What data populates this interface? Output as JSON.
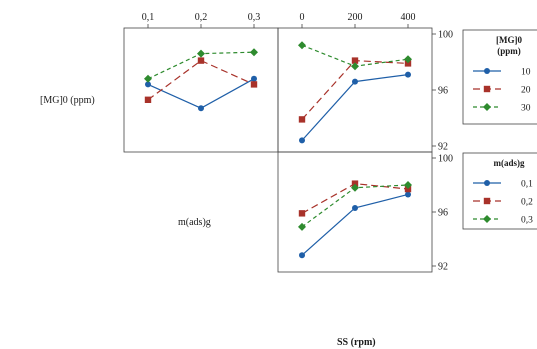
{
  "chart_data": {
    "type": "line",
    "title": "",
    "xlabel": "SS (rpm)",
    "ylim": [
      92,
      100
    ],
    "y_ticks": [
      92,
      96,
      100
    ],
    "factors": [
      {
        "name": "[MG]0 (ppm)",
        "levels": [
          10,
          20,
          30
        ],
        "level_labels": [
          "10",
          "20",
          "30"
        ]
      },
      {
        "name": "m(ads)g",
        "levels": [
          0.1,
          0.2,
          0.3
        ],
        "level_labels": [
          "0,1",
          "0,2",
          "0,3"
        ]
      },
      {
        "name": "SS (rpm)",
        "levels": [
          0,
          200,
          400
        ],
        "level_labels": [
          "0",
          "200",
          "400"
        ]
      }
    ],
    "legends": [
      {
        "title_lines": [
          "[MG]0",
          "(ppm)"
        ],
        "entries": [
          "10",
          "20",
          "30"
        ]
      },
      {
        "title_lines": [
          "m(ads)g"
        ],
        "entries": [
          "0,1",
          "0,2",
          "0,3"
        ]
      }
    ],
    "series_colors": [
      "#1f5fa8",
      "#a8322a",
      "#2e8b2e"
    ],
    "panels": [
      {
        "id": "MG0_x_m",
        "row_factor": "[MG]0 (ppm)",
        "x_factor": "m(ads)g",
        "x": [
          0.1,
          0.2,
          0.3
        ],
        "series": [
          {
            "level": "10",
            "values": [
              96.4,
              94.7,
              96.8
            ]
          },
          {
            "level": "20",
            "values": [
              95.3,
              98.1,
              96.4
            ]
          },
          {
            "level": "30",
            "values": [
              96.8,
              98.6,
              98.7
            ]
          }
        ]
      },
      {
        "id": "MG0_x_SS",
        "row_factor": "[MG]0 (ppm)",
        "x_factor": "SS (rpm)",
        "x": [
          0,
          200,
          400
        ],
        "series": [
          {
            "level": "10",
            "values": [
              92.4,
              96.6,
              97.1
            ]
          },
          {
            "level": "20",
            "values": [
              93.9,
              98.1,
              97.9
            ]
          },
          {
            "level": "30",
            "values": [
              99.2,
              97.7,
              98.2
            ]
          }
        ]
      },
      {
        "id": "m_x_SS",
        "row_factor": "m(ads)g",
        "x_factor": "SS (rpm)",
        "x": [
          0,
          200,
          400
        ],
        "series": [
          {
            "level": "0,1",
            "values": [
              92.8,
              96.3,
              97.3
            ]
          },
          {
            "level": "0,2",
            "values": [
              95.9,
              98.1,
              97.7
            ]
          },
          {
            "level": "0,3",
            "values": [
              94.9,
              97.8,
              98.0
            ]
          }
        ]
      }
    ],
    "grid": false
  }
}
